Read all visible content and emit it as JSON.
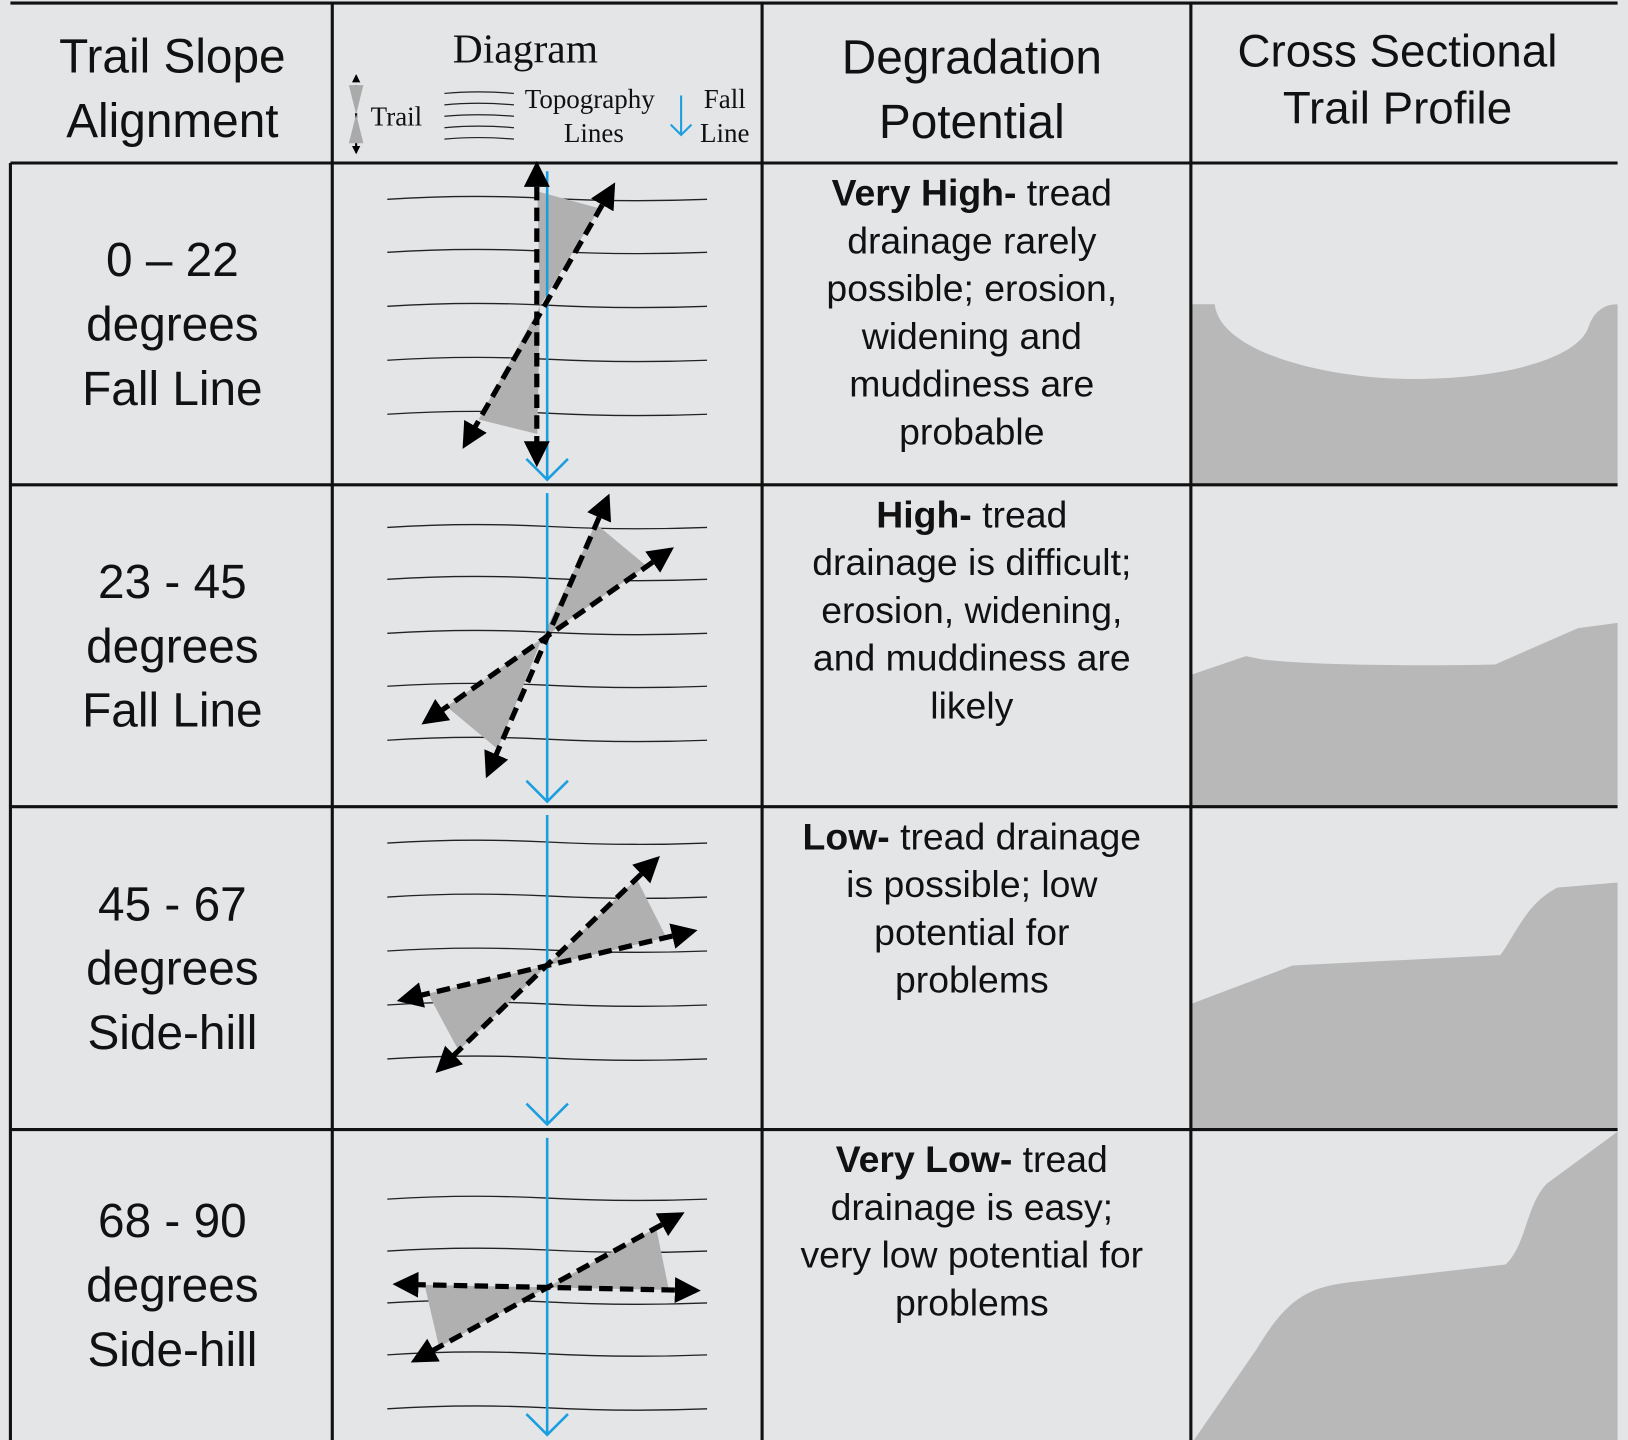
{
  "header": {
    "columns": [
      {
        "lines": [
          "Trail Slope",
          "Alignment"
        ]
      },
      {
        "title": "Diagram",
        "legend": {
          "trail": "Trail",
          "topography": [
            "Topography",
            "Lines"
          ],
          "fall_line": [
            "Fall",
            "Line"
          ]
        }
      },
      {
        "lines": [
          "Degradation",
          "Potential"
        ]
      },
      {
        "lines": [
          "Cross Sectional",
          "Trail Profile"
        ]
      }
    ]
  },
  "rows": [
    {
      "alignment": [
        "0 – 22",
        "degrees",
        "Fall Line"
      ],
      "degradation": {
        "rating": "Very High-",
        "lines": [
          "tread",
          "drainage rarely",
          "possible; erosion,",
          "widening and",
          "muddiness are",
          "probable"
        ]
      }
    },
    {
      "alignment": [
        "23 - 45",
        "degrees",
        "Fall Line"
      ],
      "degradation": {
        "rating": "High-",
        "lines": [
          "tread",
          "drainage is difficult;",
          "erosion, widening,",
          "and muddiness are",
          "likely"
        ]
      }
    },
    {
      "alignment": [
        "45 - 67",
        "degrees",
        "Side-hill"
      ],
      "degradation": {
        "rating": "Low-",
        "lines": [
          "tread drainage",
          "is possible; low",
          "potential for",
          "problems"
        ]
      }
    },
    {
      "alignment": [
        "68 - 90",
        "degrees",
        "Side-hill"
      ],
      "degradation": {
        "rating": "Very Low-",
        "lines": [
          "tread",
          "drainage is easy;",
          "very low potential for",
          "problems"
        ]
      }
    }
  ]
}
